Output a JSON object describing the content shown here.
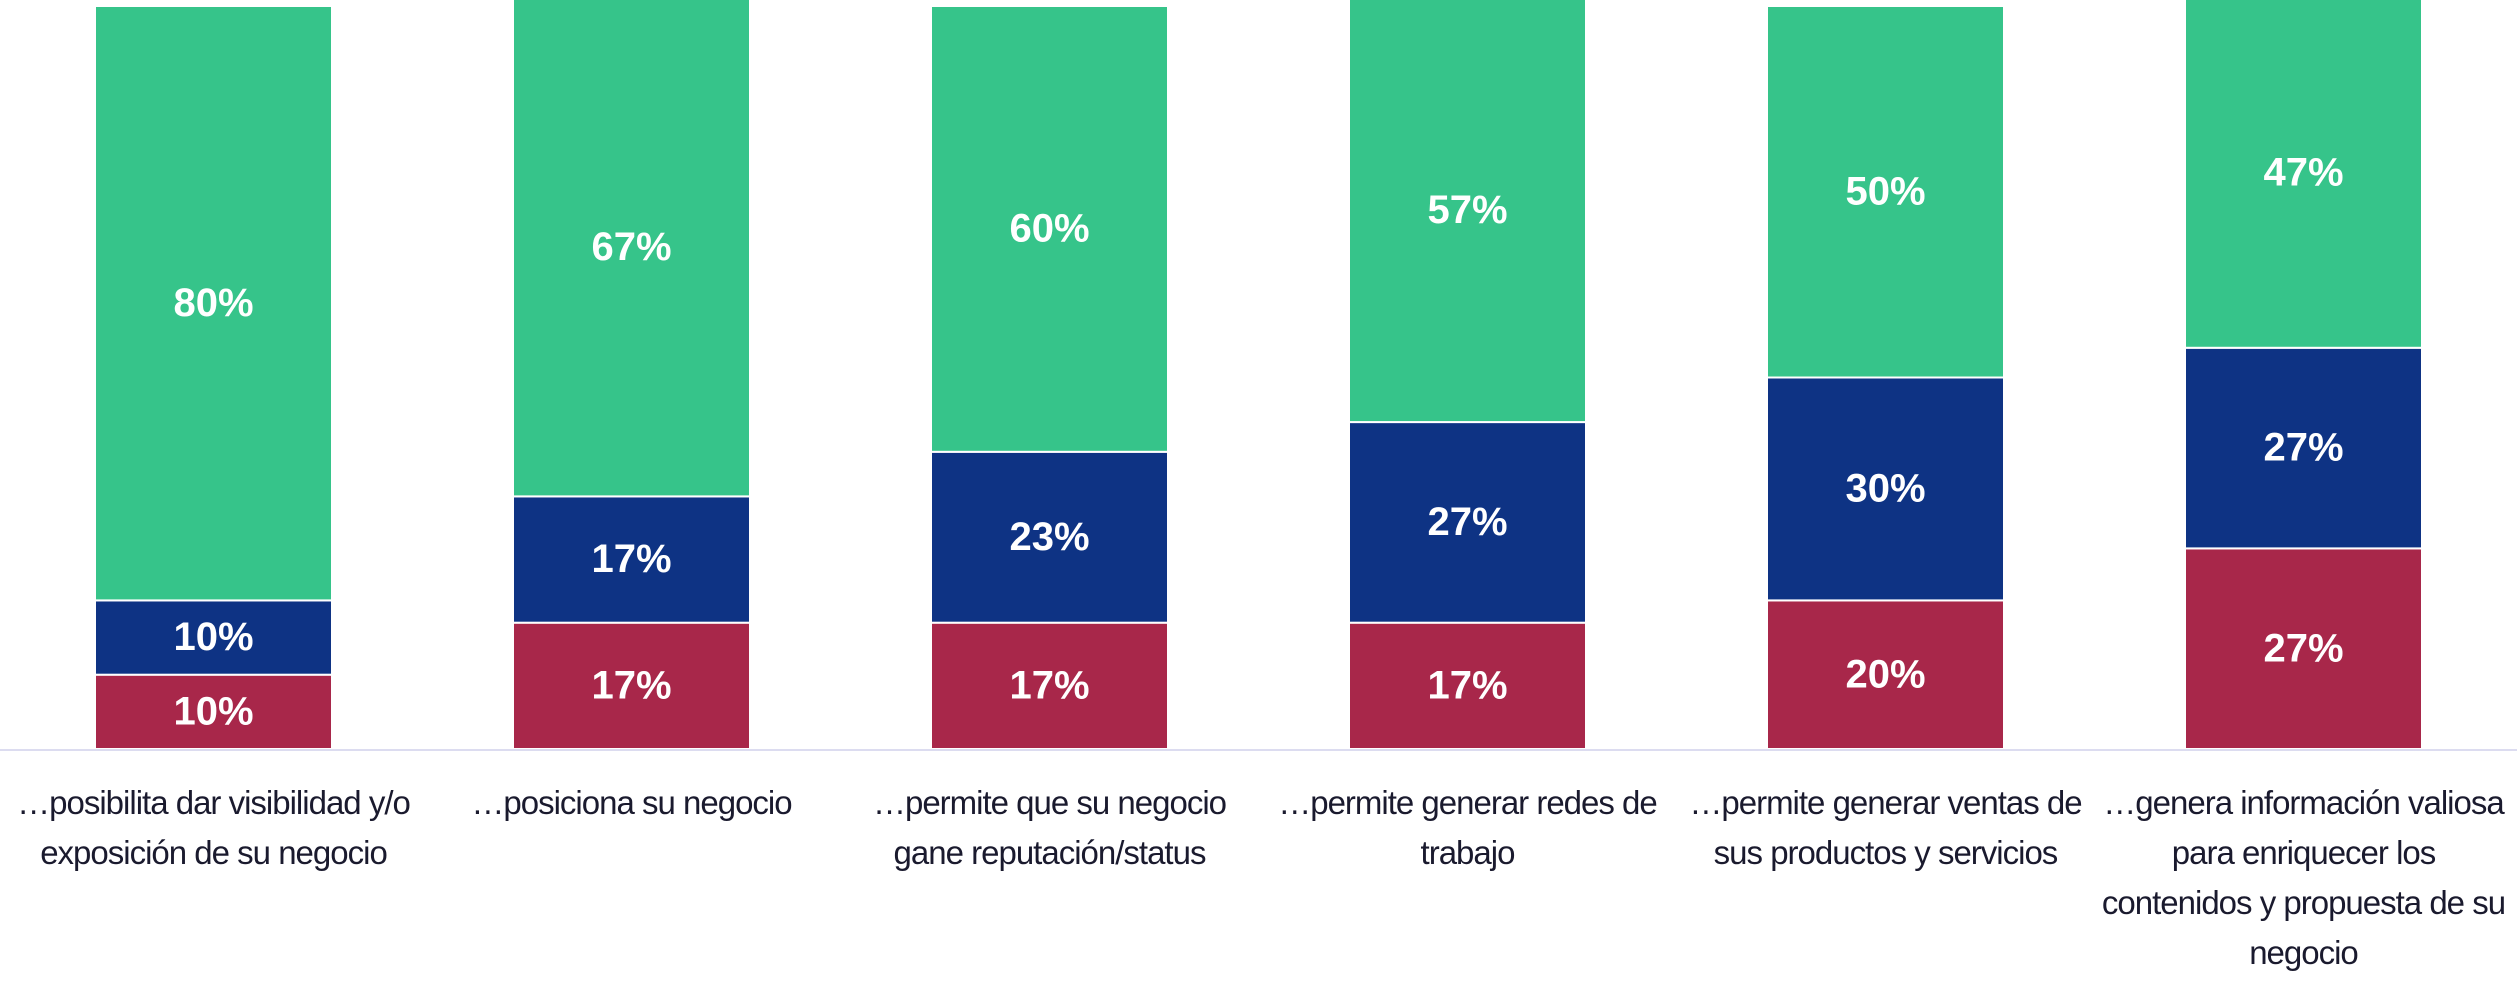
{
  "chart_data": {
    "type": "stacked_bar",
    "categories": [
      "…posibilita dar visibilidad y/o exposición de su negocio",
      "…posiciona su negocio",
      "…permite que su negocio gane reputación/status",
      "…permite generar redes de trabajo",
      "…permite generar ventas de sus productos y servicios",
      "…genera información valiosa para enriquecer los contenidos y propuesta de su negocio"
    ],
    "series": [
      {
        "color": "#a8274a",
        "values": [
          10,
          17,
          17,
          17,
          20,
          27
        ],
        "value_labels": [
          "10%",
          "17%",
          "17%",
          "17%",
          "20%",
          "27%"
        ]
      },
      {
        "color": "#0e3384",
        "values": [
          10,
          17,
          23,
          27,
          30,
          27
        ],
        "value_labels": [
          "10%",
          "17%",
          "23%",
          "27%",
          "30%",
          "27%"
        ]
      },
      {
        "color": "#36c48a",
        "values": [
          80,
          67,
          60,
          57,
          50,
          47
        ],
        "value_labels": [
          "80%",
          "67%",
          "60%",
          "57%",
          "50%",
          "47%"
        ]
      }
    ],
    "ylim": [
      0,
      100
    ]
  }
}
